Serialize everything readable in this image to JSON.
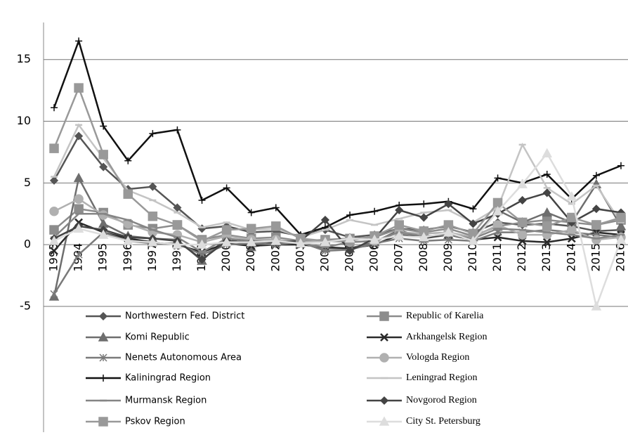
{
  "chart_data": {
    "type": "line",
    "categories": [
      "1993",
      "1994",
      "1995",
      "1996",
      "1997",
      "1998",
      "1999",
      "2000",
      "2001",
      "2002",
      "2003",
      "2004",
      "2005",
      "2006",
      "2007",
      "2008",
      "2009",
      "2010",
      "2011",
      "2012",
      "2013",
      "2014",
      "2015",
      "2016"
    ],
    "ylim": [
      -5,
      18
    ],
    "yticks": [
      -5,
      0,
      5,
      10,
      15
    ],
    "grid": true,
    "series": [
      {
        "name": "Northwestern Fed. District",
        "color": "#555555",
        "marker": "diamond",
        "values": [
          5.2,
          8.8,
          6.3,
          4.5,
          4.7,
          3.0,
          1.3,
          1.5,
          1.0,
          1.1,
          0.7,
          1.2,
          0.6,
          0.8,
          1.3,
          1.2,
          1.5,
          1.0,
          1.8,
          1.6,
          1.7,
          1.5,
          1.1,
          1.2
        ]
      },
      {
        "name": "Republic of Karelia",
        "color": "#8c8c8c",
        "marker": "square",
        "values": [
          1.2,
          2.9,
          2.6,
          1.6,
          1.3,
          1.6,
          0.4,
          0.8,
          0.5,
          0.6,
          0.3,
          0.4,
          0.5,
          0.6,
          1.3,
          1.0,
          1.3,
          0.7,
          1.5,
          1.8,
          2.0,
          1.8,
          1.6,
          2.0
        ]
      },
      {
        "name": "Komi Republic",
        "color": "#6e6e6e",
        "marker": "triangle",
        "values": [
          -4.2,
          5.4,
          1.7,
          0.7,
          0.5,
          0.4,
          -1.3,
          0.6,
          -0.2,
          0.2,
          0.1,
          -0.3,
          -0.3,
          0.2,
          1.2,
          0.5,
          0.8,
          0.6,
          2.8,
          1.8,
          2.6,
          1.8,
          4.9,
          1.5
        ]
      },
      {
        "name": "Arkhangelsk Region",
        "color": "#2a2a2a",
        "marker": "x",
        "values": [
          -0.5,
          1.8,
          1.0,
          0.5,
          0.2,
          0.0,
          -0.6,
          0.1,
          -0.1,
          0.0,
          0.0,
          -0.2,
          -0.3,
          0.0,
          0.8,
          0.6,
          0.8,
          0.4,
          0.6,
          0.3,
          0.2,
          0.5,
          1.0,
          0.8
        ]
      },
      {
        "name": "Nenets Autonomous Area",
        "color": "#7a7a7a",
        "marker": "asterisk",
        "values": [
          -4.0,
          -0.8,
          1.0,
          0.3,
          0.1,
          0.1,
          -0.8,
          0.0,
          0.1,
          0.0,
          0.2,
          -0.5,
          -0.4,
          0.1,
          0.5,
          0.3,
          0.4,
          0.3,
          1.0,
          1.0,
          1.2,
          1.0,
          0.8,
          0.6
        ]
      },
      {
        "name": "Vologda Region",
        "color": "#b0b0b0",
        "marker": "circle",
        "values": [
          2.7,
          3.7,
          2.4,
          1.7,
          1.0,
          0.8,
          0.2,
          0.7,
          0.4,
          0.4,
          0.2,
          0.3,
          0.2,
          0.3,
          1.0,
          0.9,
          1.0,
          0.6,
          1.6,
          0.8,
          0.8,
          1.2,
          0.4,
          0.6
        ]
      },
      {
        "name": "Kaliningrad Region",
        "color": "#111111",
        "marker": "plus",
        "values": [
          11.1,
          16.5,
          9.6,
          6.8,
          9.0,
          9.3,
          3.6,
          4.6,
          2.6,
          3.0,
          0.8,
          1.4,
          2.4,
          2.7,
          3.2,
          3.3,
          3.5,
          2.9,
          5.4,
          5.0,
          5.7,
          3.7,
          5.6,
          6.4
        ]
      },
      {
        "name": "Leningrad Region",
        "color": "#c4c4c4",
        "marker": "dash",
        "values": [
          5.5,
          9.7,
          7.0,
          4.4,
          3.6,
          2.6,
          1.4,
          1.8,
          1.2,
          1.3,
          0.6,
          1.2,
          2.0,
          1.6,
          2.1,
          2.6,
          2.8,
          1.8,
          3.0,
          8.1,
          4.6,
          3.3,
          4.8,
          1.8
        ]
      },
      {
        "name": "Murmansk Region",
        "color": "#858585",
        "marker": "dash",
        "values": [
          0.6,
          2.5,
          2.5,
          2.0,
          1.2,
          0.6,
          -0.6,
          0.5,
          0.3,
          0.2,
          0.1,
          -0.2,
          0.2,
          0.3,
          1.0,
          0.7,
          0.8,
          0.5,
          1.3,
          1.2,
          1.0,
          0.8,
          0.5,
          0.8
        ]
      },
      {
        "name": "Novgorod Region",
        "color": "#444444",
        "marker": "diamond",
        "values": [
          0.5,
          1.5,
          1.2,
          0.6,
          0.5,
          0.3,
          -1.2,
          0.3,
          0.2,
          0.2,
          0.3,
          2.0,
          -0.5,
          0.5,
          2.8,
          2.2,
          3.3,
          1.7,
          2.5,
          3.6,
          4.2,
          1.8,
          2.9,
          2.6
        ]
      },
      {
        "name": "Pskov Region",
        "color": "#999999",
        "marker": "square",
        "values": [
          7.8,
          12.7,
          7.3,
          4.1,
          2.3,
          1.6,
          0.3,
          1.2,
          1.3,
          1.5,
          0.5,
          0.3,
          0.3,
          0.7,
          1.6,
          1.1,
          1.6,
          0.9,
          3.4,
          1.8,
          1.5,
          2.2,
          1.6,
          2.2
        ]
      },
      {
        "name": "City St. Petersburg",
        "color": "#dddddd",
        "marker": "triangle",
        "values": [
          0.3,
          1.3,
          0.8,
          0.3,
          0.2,
          0.0,
          0.0,
          0.2,
          0.2,
          0.3,
          0.1,
          0.2,
          0.5,
          0.4,
          0.7,
          0.6,
          1.0,
          0.3,
          2.7,
          4.9,
          7.4,
          3.9,
          -5.0,
          0.4
        ]
      }
    ]
  }
}
